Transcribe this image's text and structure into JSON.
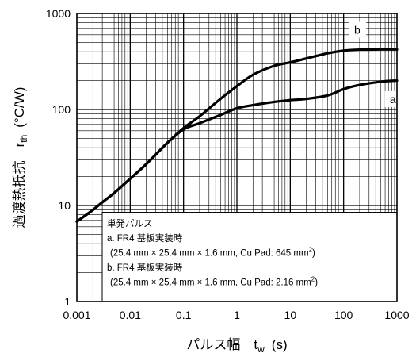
{
  "chart_data": {
    "type": "line",
    "xscale": "log",
    "yscale": "log",
    "xlim": [
      0.001,
      1000
    ],
    "ylim": [
      1,
      1000
    ],
    "grid": true,
    "ylabel": "過渡熱抵抗　r",
    "ylabel_sub": "th",
    "ylabel_unit": "(°C/W)",
    "xlabel": "パルス幅　t",
    "xlabel_sub": "w",
    "xlabel_unit": "(s)",
    "x_ticks": [
      {
        "value": 0.001,
        "label": "0.001"
      },
      {
        "value": 0.01,
        "label": "0.01"
      },
      {
        "value": 0.1,
        "label": "0.1"
      },
      {
        "value": 1,
        "label": "1"
      },
      {
        "value": 10,
        "label": "10"
      },
      {
        "value": 100,
        "label": "100"
      },
      {
        "value": 1000,
        "label": "1000"
      }
    ],
    "y_ticks": [
      {
        "value": 1,
        "label": "1"
      },
      {
        "value": 10,
        "label": "10"
      },
      {
        "value": 100,
        "label": "100"
      },
      {
        "value": 1000,
        "label": "1000"
      }
    ],
    "series": [
      {
        "name": "a",
        "x": [
          0.001,
          0.002,
          0.003,
          0.005,
          0.01,
          0.02,
          0.05,
          0.1,
          0.2,
          0.5,
          1,
          2,
          5,
          10,
          20,
          50,
          100,
          200,
          500,
          1000
        ],
        "y": [
          6.8,
          9.0,
          10.8,
          13.5,
          19.0,
          27.0,
          45.0,
          62.0,
          72.0,
          88.0,
          103.0,
          111.0,
          120.0,
          125.0,
          129.0,
          140.0,
          163.0,
          180.0,
          195.0,
          200.0
        ]
      },
      {
        "name": "b",
        "x": [
          0.001,
          0.002,
          0.003,
          0.005,
          0.01,
          0.02,
          0.05,
          0.1,
          0.2,
          0.5,
          1,
          2,
          5,
          10,
          20,
          50,
          100,
          200,
          500,
          1000
        ],
        "y": [
          6.8,
          9.0,
          10.8,
          13.5,
          19.0,
          27.0,
          45.0,
          64.0,
          85.0,
          130.0,
          175.0,
          230.0,
          285.0,
          310.0,
          340.0,
          385.0,
          410.0,
          420.0,
          422.0,
          422.0
        ]
      }
    ],
    "legend": {
      "title": "単発パルス",
      "line_a": "a. FR4 基板実装時",
      "line_a_dim": "(25.4 mm × 25.4 mm × 1.6 mm, Cu Pad: 645 mm",
      "line_a_sup": "2",
      "line_a_end": ")",
      "line_b": "b. FR4 基板実装時",
      "line_b_dim": "(25.4 mm × 25.4 mm × 1.6 mm, Cu Pad: 2.16 mm",
      "line_b_sup": "2",
      "line_b_end": ")"
    },
    "colors": {
      "line": "#000000",
      "grid": "#000000",
      "background": "#ffffff"
    }
  }
}
